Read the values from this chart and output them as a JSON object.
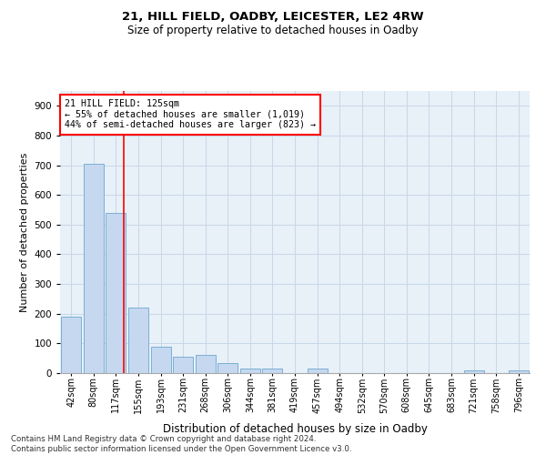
{
  "title1": "21, HILL FIELD, OADBY, LEICESTER, LE2 4RW",
  "title2": "Size of property relative to detached houses in Oadby",
  "xlabel": "Distribution of detached houses by size in Oadby",
  "ylabel": "Number of detached properties",
  "categories": [
    "42sqm",
    "80sqm",
    "117sqm",
    "155sqm",
    "193sqm",
    "231sqm",
    "268sqm",
    "306sqm",
    "344sqm",
    "381sqm",
    "419sqm",
    "457sqm",
    "494sqm",
    "532sqm",
    "570sqm",
    "608sqm",
    "645sqm",
    "683sqm",
    "721sqm",
    "758sqm",
    "796sqm"
  ],
  "values": [
    190,
    705,
    540,
    220,
    90,
    55,
    60,
    35,
    15,
    15,
    0,
    15,
    0,
    0,
    0,
    0,
    0,
    0,
    10,
    0,
    10
  ],
  "bar_color": "#c5d8f0",
  "bar_edge_color": "#7bafd4",
  "annotation_text": "21 HILL FIELD: 125sqm\n← 55% of detached houses are smaller (1,019)\n44% of semi-detached houses are larger (823) →",
  "annotation_box_color": "white",
  "annotation_box_edge_color": "red",
  "vline_color": "red",
  "vline_x": 2.35,
  "grid_color": "#c8d8e8",
  "background_color": "#e8f0f8",
  "footnote": "Contains HM Land Registry data © Crown copyright and database right 2024.\nContains public sector information licensed under the Open Government Licence v3.0.",
  "ylim": [
    0,
    950
  ],
  "yticks": [
    0,
    100,
    200,
    300,
    400,
    500,
    600,
    700,
    800,
    900
  ],
  "title1_fontsize": 9.5,
  "title2_fontsize": 8.5
}
